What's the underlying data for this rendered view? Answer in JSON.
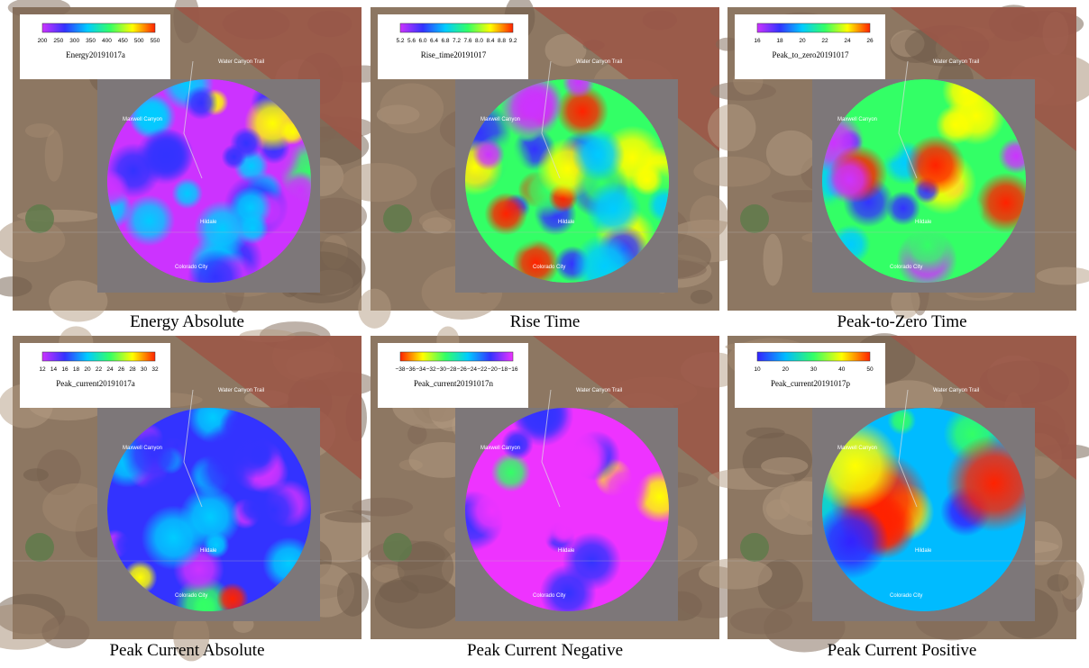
{
  "panels": [
    {
      "caption": "Energy Absolute",
      "colorbar_title": "Energy20191017a",
      "ticks": [
        "200",
        "250",
        "300",
        "350",
        "400",
        "450",
        "500",
        "550"
      ],
      "colormap": [
        "#cc33ff",
        "#3333ff",
        "#00ccff",
        "#33ff66",
        "#ffff00",
        "#ff2200"
      ]
    },
    {
      "caption": "Rise Time",
      "colorbar_title": "Rise_time20191017",
      "ticks": [
        "5.2",
        "5.6",
        "6.0",
        "6.4",
        "6.8",
        "7.2",
        "7.6",
        "8.0",
        "8.4",
        "8.8",
        "9.2"
      ],
      "colormap": [
        "#cc33ff",
        "#3333ff",
        "#00ccff",
        "#33ff66",
        "#ffff00",
        "#ff2200"
      ]
    },
    {
      "caption": "Peak-to-Zero Time",
      "colorbar_title": "Peak_to_zero20191017",
      "ticks": [
        "16",
        "18",
        "20",
        "22",
        "24",
        "26"
      ],
      "colormap": [
        "#cc33ff",
        "#3333ff",
        "#00ccff",
        "#33ff66",
        "#ffff00",
        "#ff2200"
      ]
    },
    {
      "caption": "Peak Current Absolute",
      "colorbar_title": "Peak_current20191017a",
      "ticks": [
        "12",
        "14",
        "16",
        "18",
        "20",
        "22",
        "24",
        "26",
        "28",
        "30",
        "32"
      ],
      "colormap": [
        "#cc33ff",
        "#3333ff",
        "#00ccff",
        "#33ff66",
        "#ffff00",
        "#ff2200"
      ]
    },
    {
      "caption": "Peak Current Negative",
      "colorbar_title": "Peak_current20191017n",
      "ticks": [
        "−38",
        "−36",
        "−34",
        "−32",
        "−30",
        "−28",
        "−26",
        "−24",
        "−22",
        "−20",
        "−18",
        "−16"
      ],
      "colormap": [
        "#ff2200",
        "#ffff00",
        "#33ff66",
        "#00ccff",
        "#3333ff",
        "#ee33ff"
      ]
    },
    {
      "caption": "Peak Current Positive",
      "colorbar_title": "Peak_current20191017p",
      "ticks": [
        "10",
        "20",
        "30",
        "40",
        "50"
      ],
      "colormap": [
        "#3322ff",
        "#00bbff",
        "#33ff66",
        "#ffff00",
        "#ff2200"
      ]
    }
  ],
  "places": [
    "Water Canyon Trail",
    "Maxwell Canyon",
    "Hildale",
    "Colorado City"
  ]
}
